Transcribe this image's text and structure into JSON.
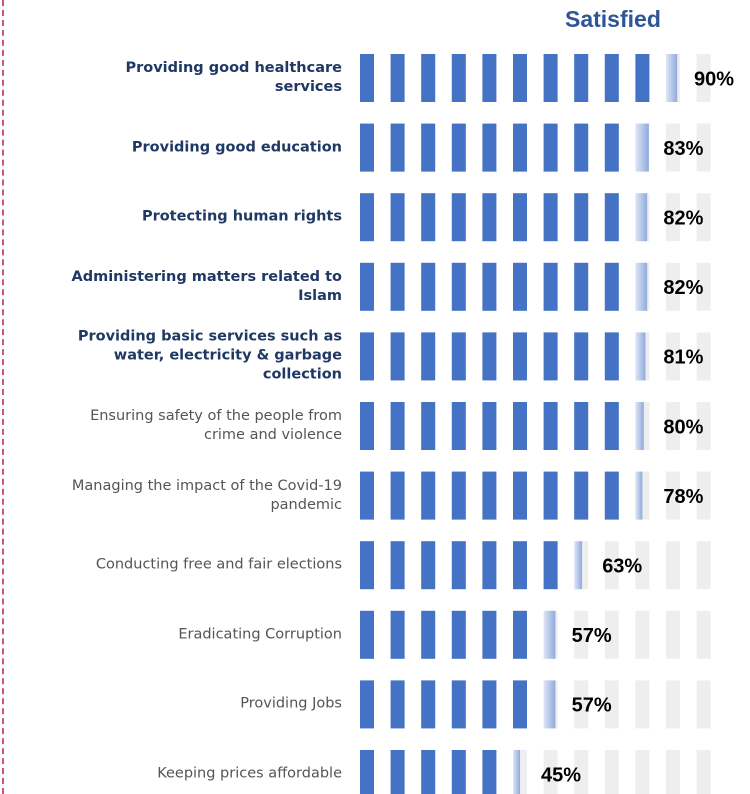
{
  "chart_data": {
    "type": "pictogram-bar",
    "title": "Satisfied",
    "categories": [
      "Providing good healthcare\nservices",
      "Providing good education",
      "Protecting human rights",
      "Administering matters related to\nIslam",
      "Providing basic services such as\nwater,  electricity & garbage\ncollection",
      "Ensuring safety of the people from\ncrime and  violence",
      "Managing the impact of the Covid-19\npandemic",
      "Conducting free and fair elections",
      "Eradicating Corruption",
      "Providing Jobs",
      "Keeping prices affordable"
    ],
    "values": [
      90,
      83,
      82,
      82,
      81,
      80,
      78,
      63,
      57,
      57,
      45
    ],
    "value_labels": [
      "90%",
      "83%",
      "82%",
      "82%",
      "81%",
      "80%",
      "78%",
      "63%",
      "57%",
      "57%",
      "45%"
    ],
    "color": "#4472c4",
    "ylim": [
      0,
      100
    ]
  }
}
